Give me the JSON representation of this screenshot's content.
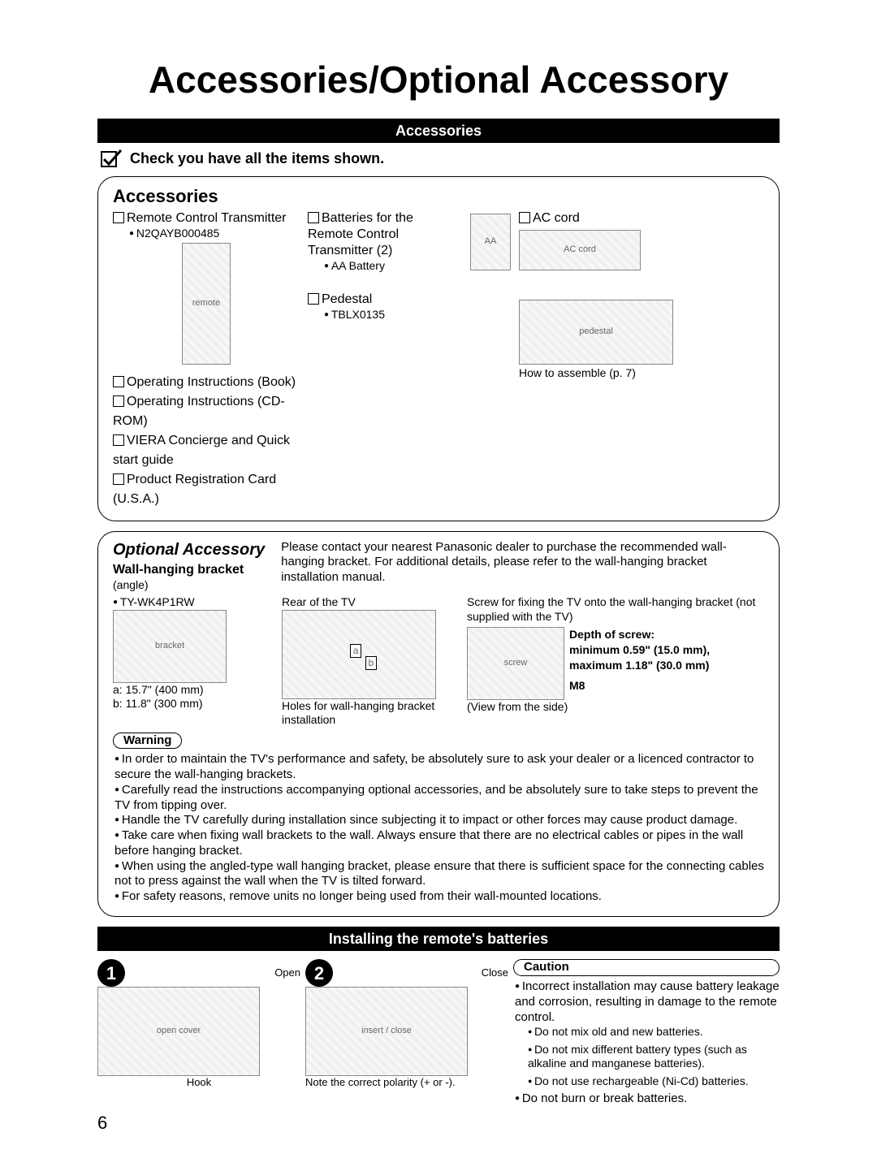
{
  "colors": {
    "page_bg": "#ffffff",
    "text": "#000000",
    "bar_bg": "#000000",
    "bar_text": "#ffffff",
    "panel_border": "#000000"
  },
  "page": {
    "title": "Accessories/Optional Accessory",
    "number": "6"
  },
  "bar1": "Accessories",
  "check_line": "Check you have all the items shown.",
  "accessories": {
    "title": "Accessories",
    "remote": {
      "label": "Remote Control Transmitter",
      "model": "N2QAYB000485"
    },
    "batteries": {
      "label": "Batteries for the Remote Control Transmitter (2)",
      "note": "AA Battery"
    },
    "ac_cord": {
      "label": "AC cord"
    },
    "pedestal": {
      "label": "Pedestal",
      "model": "TBLX0135",
      "assemble": "How to assemble (p. 7)"
    },
    "extras": [
      "Operating Instructions (Book)",
      "Operating Instructions (CD-ROM)",
      "VIERA Concierge and Quick start guide",
      "Product Registration Card (U.S.A.)"
    ]
  },
  "optional": {
    "title": "Optional Accessory",
    "desc": "Please contact your nearest Panasonic dealer to purchase the recommended wall-hanging bracket. For additional details, please refer to the wall-hanging bracket installation manual.",
    "sub": "Wall-hanging bracket",
    "angle": "(angle)",
    "model": "TY-WK4P1RW",
    "dim_a": "a: 15.7\" (400 mm)",
    "dim_b": "b: 11.8\" (300 mm)",
    "rear_label": "Rear of the TV",
    "holes_label": "Holes for wall-hanging bracket installation",
    "screw_note": "Screw for fixing the TV onto the wall-hanging bracket (not supplied with the TV)",
    "depth_label": "Depth of screw:",
    "depth_min": "minimum 0.59\" (15.0 mm),",
    "depth_max": "maximum 1.18\" (30.0 mm)",
    "screw_size": "M8",
    "view_label": "(View from the side)",
    "a_lbl": "a",
    "b_lbl": "b",
    "warning_label": "Warning",
    "warnings": [
      "In order to maintain the TV's performance and safety, be absolutely sure to ask your dealer or a licenced contractor to secure the wall-hanging brackets.",
      "Carefully read the instructions accompanying optional accessories, and be absolutely sure to take steps to prevent the TV from tipping over.",
      "Handle the TV carefully during installation since subjecting it to impact or other forces may cause product damage.",
      "Take care when fixing wall brackets to the wall. Always ensure that there are no electrical cables or pipes in the wall before hanging bracket.",
      "When using the angled-type wall hanging bracket, please ensure that there is sufficient space for the connecting cables not to press against the wall when the TV is tilted forward.",
      "For safety reasons, remove units no longer being used from their wall-mounted locations."
    ]
  },
  "bar2": "Installing the remote's batteries",
  "install": {
    "step1_num": "1",
    "step2_num": "2",
    "open": "Open",
    "hook": "Hook",
    "close": "Close",
    "polarity": "Note the correct polarity (+ or -).",
    "caution_label": "Caution",
    "caution_main": "Incorrect installation may cause battery leakage and corrosion, resulting in damage to the remote control.",
    "caution_sub": [
      "Do not mix old and new batteries.",
      "Do not mix different battery types (such as alkaline and manganese batteries).",
      "Do not use rechargeable (Ni-Cd) batteries."
    ],
    "caution_last": "Do not burn or break batteries."
  }
}
